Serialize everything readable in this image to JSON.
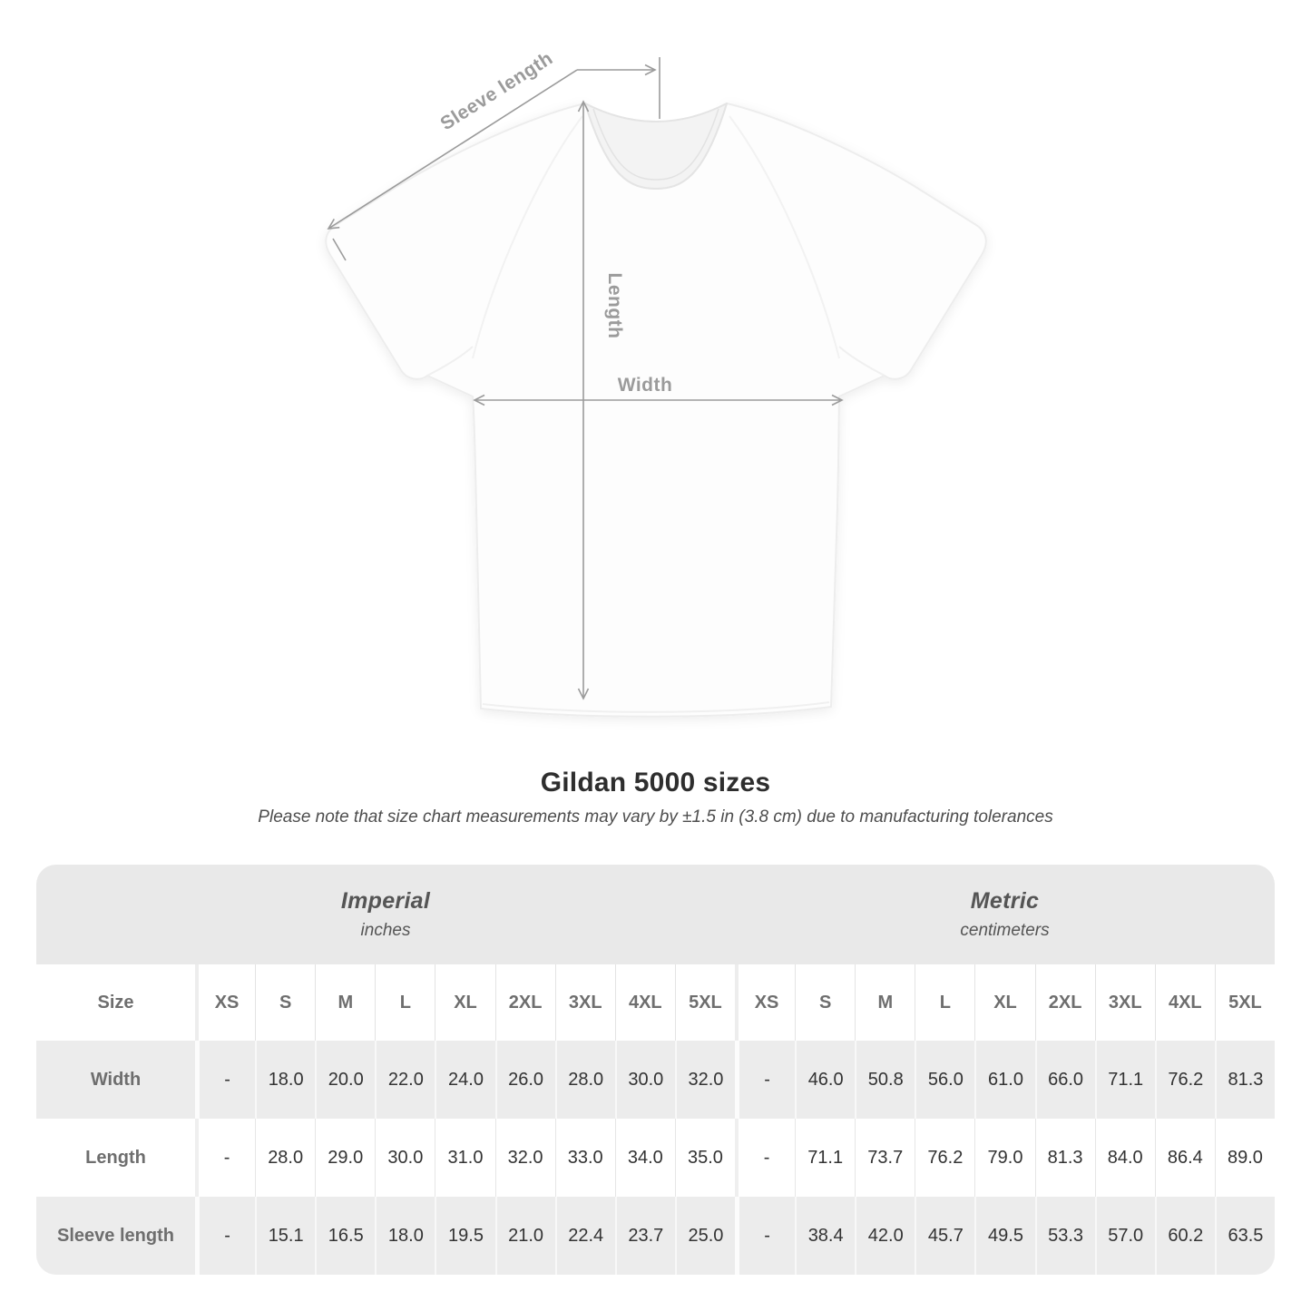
{
  "title": "Gildan 5000 sizes",
  "note": "Please note that size chart measurements may vary by ±1.5 in (3.8 cm) due to manufacturing tolerances",
  "diagram": {
    "sleeve_length_label": "Sleeve length",
    "length_label": "Length",
    "width_label": "Width"
  },
  "table": {
    "size_col_header": "Size",
    "sizes": [
      "XS",
      "S",
      "M",
      "L",
      "XL",
      "2XL",
      "3XL",
      "4XL",
      "5XL"
    ],
    "unit_groups": [
      {
        "name": "Imperial",
        "unit": "inches"
      },
      {
        "name": "Metric",
        "unit": "centimeters"
      }
    ],
    "rows": [
      {
        "label": "Width",
        "imperial": [
          "-",
          "18.0",
          "20.0",
          "22.0",
          "24.0",
          "26.0",
          "28.0",
          "30.0",
          "32.0"
        ],
        "metric": [
          "-",
          "46.0",
          "50.8",
          "56.0",
          "61.0",
          "66.0",
          "71.1",
          "76.2",
          "81.3"
        ]
      },
      {
        "label": "Length",
        "imperial": [
          "-",
          "28.0",
          "29.0",
          "30.0",
          "31.0",
          "32.0",
          "33.0",
          "34.0",
          "35.0"
        ],
        "metric": [
          "-",
          "71.1",
          "73.7",
          "76.2",
          "79.0",
          "81.3",
          "84.0",
          "86.4",
          "89.0"
        ]
      },
      {
        "label": "Sleeve length",
        "imperial": [
          "-",
          "15.1",
          "16.5",
          "18.0",
          "19.5",
          "21.0",
          "22.4",
          "23.7",
          "25.0"
        ],
        "metric": [
          "-",
          "38.4",
          "42.0",
          "45.7",
          "49.5",
          "53.3",
          "57.0",
          "60.2",
          "63.5"
        ]
      }
    ]
  },
  "colors": {
    "annotation_gray": "#9b9b9b",
    "band_gray": "#e9e9e9",
    "stripe_gray": "#ececec",
    "title_text": "#2e2e2e",
    "note_text": "#4d4d4d",
    "table_label_text": "#6e6e6e",
    "table_value_text": "#333333",
    "shirt_fill": "#fdfdfd"
  }
}
